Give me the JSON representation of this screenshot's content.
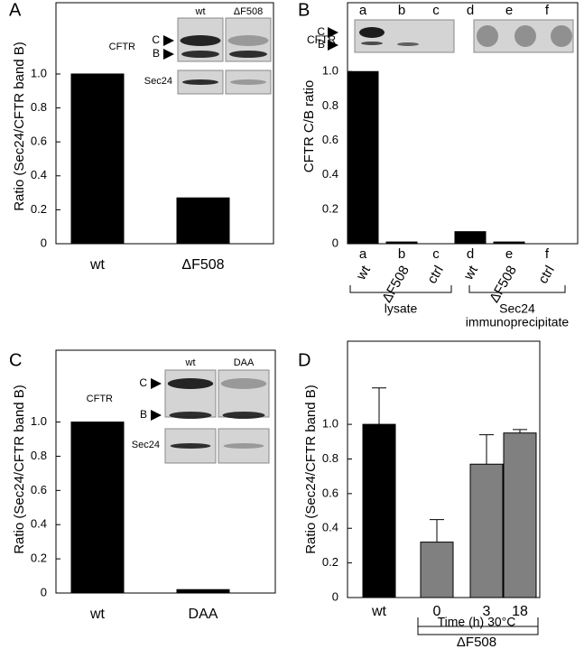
{
  "chart_data": [
    {
      "type": "bar",
      "panel": "A",
      "ylabel": "Ratio (Sec24/CFTR band B)",
      "categories": [
        "wt",
        "ΔF508"
      ],
      "values": [
        1.0,
        0.27
      ],
      "color": "#000000",
      "ylim": [
        0,
        1.42
      ],
      "yticks": [
        0,
        0.2,
        0.4,
        0.6,
        0.8,
        {
          "value": 1,
          "label": "1.0"
        }
      ],
      "inset_labels": [
        "wt",
        "ΔF508",
        "CFTR",
        "C",
        "B",
        "Sec24"
      ]
    },
    {
      "type": "bar",
      "panel": "B",
      "ylabel": "CFTR C/B ratio",
      "lanes": [
        "a",
        "b",
        "c",
        "d",
        "e",
        "f"
      ],
      "categories": [
        "wt",
        "ΔF508",
        "ctrl",
        "wt",
        "ΔF508",
        "ctrl"
      ],
      "values": [
        1.0,
        0.01,
        0,
        0.07,
        0.01,
        0
      ],
      "color": "#000000",
      "ylim": [
        0,
        1.4
      ],
      "yticks": [
        0,
        0.2,
        0.4,
        0.6,
        0.8,
        {
          "value": 1,
          "label": "1.0"
        }
      ],
      "inset_labels": [
        "CFTR",
        "C",
        "B"
      ],
      "groups": [
        [
          "lysate"
        ],
        [
          "Sec24",
          "immunoprecipitate"
        ]
      ]
    },
    {
      "type": "bar",
      "panel": "C",
      "ylabel": "Ratio (Sec24/CFTR band B)",
      "categories": [
        "wt",
        "DAA"
      ],
      "values": [
        1.0,
        0.02
      ],
      "color": "#000000",
      "ylim": [
        0,
        1.42
      ],
      "yticks": [
        0,
        0.2,
        0.4,
        0.6,
        0.8,
        {
          "value": 1,
          "label": "1.0"
        }
      ],
      "inset_labels": [
        "wt",
        "DAA",
        "CFTR",
        "C",
        "B",
        "Sec24"
      ]
    },
    {
      "type": "bar",
      "panel": "D",
      "ylabel": "Ratio (Sec24/CFTR band B)",
      "categories": [
        "wt",
        "0",
        "3",
        "18"
      ],
      "values": [
        1.0,
        0.32,
        0.77,
        0.95
      ],
      "errors": [
        0.21,
        0.13,
        0.17,
        0.02
      ],
      "colors": [
        "#000000",
        "#808080",
        "#808080",
        "#808080"
      ],
      "ylim": [
        0,
        1.48
      ],
      "yticks": [
        0,
        0.2,
        0.4,
        0.6,
        0.8,
        {
          "value": 1,
          "label": "1.0"
        }
      ],
      "groups": [
        [
          "Time (h) 30°C"
        ],
        [
          "ΔF508"
        ]
      ]
    }
  ]
}
